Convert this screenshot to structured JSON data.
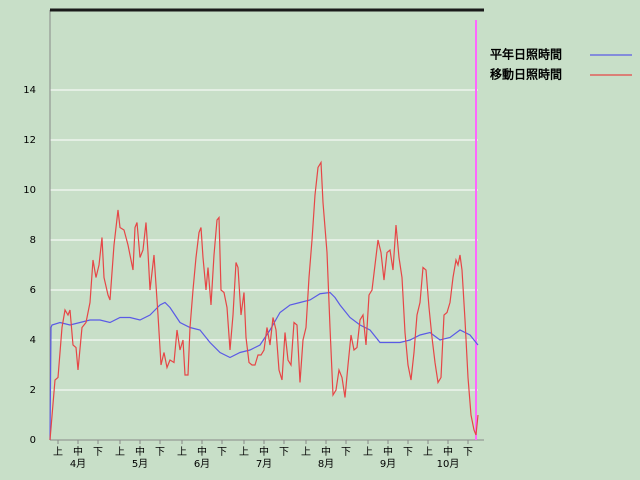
{
  "chart_data": {
    "type": "line",
    "legend": "top-right",
    "background": "#c8dfc8",
    "grid": true,
    "xlim": [
      0,
      214
    ],
    "ylim": [
      0,
      17.2
    ],
    "yticks": [
      0,
      2,
      4,
      6,
      8,
      10,
      12,
      14
    ],
    "xticks": [
      {
        "value": 4,
        "label": "上"
      },
      {
        "value": 14,
        "label": "中"
      },
      {
        "value": 24,
        "label": "下"
      },
      {
        "value": 35,
        "label": "上"
      },
      {
        "value": 45,
        "label": "中"
      },
      {
        "value": 55,
        "label": "下"
      },
      {
        "value": 66,
        "label": "上"
      },
      {
        "value": 76,
        "label": "中"
      },
      {
        "value": 86,
        "label": "下"
      },
      {
        "value": 97,
        "label": "上"
      },
      {
        "value": 107,
        "label": "中"
      },
      {
        "value": 117,
        "label": "下"
      },
      {
        "value": 128,
        "label": "上"
      },
      {
        "value": 138,
        "label": "中"
      },
      {
        "value": 148,
        "label": "下"
      },
      {
        "value": 159,
        "label": "上"
      },
      {
        "value": 169,
        "label": "中"
      },
      {
        "value": 179,
        "label": "下"
      },
      {
        "value": 189,
        "label": "上"
      },
      {
        "value": 199,
        "label": "中"
      },
      {
        "value": 209,
        "label": "下"
      }
    ],
    "month_labels": [
      {
        "value": 14,
        "label": "4月"
      },
      {
        "value": 45,
        "label": "5月"
      },
      {
        "value": 76,
        "label": "6月"
      },
      {
        "value": 107,
        "label": "7月"
      },
      {
        "value": 138,
        "label": "8月"
      },
      {
        "value": 169,
        "label": "9月"
      },
      {
        "value": 199,
        "label": "10月"
      }
    ],
    "series": [
      {
        "name": "平年日照時間",
        "color": "#5a5ae6",
        "x": [
          0,
          0.5,
          1,
          5,
          10,
          15,
          20,
          25,
          30,
          35,
          40,
          45,
          50,
          52.5,
          55,
          57.5,
          60,
          62.5,
          65,
          70,
          75,
          80,
          85,
          90,
          95,
          100,
          105,
          110,
          115,
          120,
          125,
          130,
          135,
          140,
          142.5,
          145,
          150,
          155,
          160,
          165,
          170,
          175,
          180,
          185,
          190,
          195,
          200,
          205,
          210,
          214
        ],
        "values": [
          0,
          4.5,
          4.6,
          4.7,
          4.6,
          4.7,
          4.8,
          4.8,
          4.7,
          4.9,
          4.9,
          4.8,
          5.0,
          5.2,
          5.4,
          5.5,
          5.3,
          5.0,
          4.7,
          4.5,
          4.4,
          3.9,
          3.5,
          3.3,
          3.5,
          3.6,
          3.8,
          4.4,
          5.1,
          5.4,
          5.5,
          5.6,
          5.85,
          5.9,
          5.7,
          5.4,
          4.9,
          4.6,
          4.4,
          3.9,
          3.9,
          3.9,
          4.0,
          4.2,
          4.3,
          4.0,
          4.1,
          4.4,
          4.2,
          3.8
        ]
      },
      {
        "name": "移動日照時間",
        "color": "#e64646",
        "x": [
          0,
          2.5,
          4,
          6,
          7.5,
          9,
          10,
          11.5,
          13,
          14,
          16,
          18,
          20,
          21.5,
          23,
          24.5,
          26,
          27,
          29,
          30,
          32,
          34,
          35,
          37,
          39,
          40.5,
          41.5,
          42.5,
          43.5,
          45,
          46.5,
          48,
          49,
          50,
          52,
          54,
          55.5,
          57,
          58.5,
          60,
          62,
          63.5,
          65,
          66.5,
          67.5,
          69,
          70,
          71.5,
          73,
          74.5,
          75.5,
          76.5,
          78,
          79,
          80.5,
          82,
          83.5,
          84.5,
          85.5,
          87,
          88.5,
          90,
          91.5,
          93,
          94,
          95.5,
          97,
          98,
          99.5,
          101,
          102.5,
          104,
          105.5,
          107,
          108.5,
          110,
          111.5,
          113,
          114.5,
          116,
          117.5,
          119,
          120.5,
          122,
          123.5,
          125,
          126.5,
          128,
          129.5,
          131,
          132.5,
          134,
          135.5,
          136.5,
          138.5,
          140,
          141.5,
          143,
          144.5,
          146,
          147.5,
          149,
          150.5,
          152,
          153.5,
          155,
          156.5,
          158,
          159.5,
          161,
          162.5,
          164,
          165.5,
          167,
          168.5,
          170,
          171.5,
          173,
          174.5,
          176,
          177.5,
          179,
          180.5,
          182,
          183.5,
          185,
          186.5,
          188,
          189.5,
          191,
          192.5,
          194,
          195.5,
          197,
          198.5,
          200,
          201.5,
          203,
          204,
          205,
          206,
          207.5,
          209,
          210.5,
          212,
          213,
          214
        ],
        "values": [
          0,
          2.4,
          2.5,
          4.5,
          5.2,
          5.0,
          5.2,
          3.8,
          3.7,
          2.8,
          4.5,
          4.7,
          5.5,
          7.2,
          6.5,
          7.0,
          8.1,
          6.5,
          5.8,
          5.6,
          7.8,
          9.2,
          8.5,
          8.4,
          7.8,
          7.2,
          6.8,
          8.5,
          8.7,
          7.3,
          7.6,
          8.7,
          7.5,
          6.0,
          7.4,
          5.0,
          3.0,
          3.5,
          2.9,
          3.2,
          3.1,
          4.4,
          3.6,
          4.0,
          2.6,
          2.6,
          4.5,
          6.0,
          7.3,
          8.3,
          8.5,
          7.3,
          6.0,
          6.9,
          5.4,
          7.4,
          8.8,
          8.9,
          6.0,
          5.9,
          5.3,
          3.6,
          5.0,
          7.1,
          6.9,
          5.0,
          5.9,
          4.1,
          3.1,
          3.0,
          3.0,
          3.4,
          3.4,
          3.6,
          4.5,
          3.8,
          4.9,
          4.4,
          2.8,
          2.4,
          4.3,
          3.2,
          3.0,
          4.7,
          4.6,
          2.3,
          4.0,
          4.5,
          6.5,
          8.0,
          9.8,
          10.9,
          11.1,
          9.5,
          7.5,
          4.5,
          1.8,
          2.0,
          2.8,
          2.5,
          1.7,
          3.0,
          4.2,
          3.6,
          3.7,
          4.8,
          5.0,
          3.8,
          5.8,
          6.0,
          7.0,
          8.0,
          7.5,
          6.4,
          7.5,
          7.6,
          6.8,
          8.6,
          7.3,
          6.5,
          4.3,
          3.0,
          2.4,
          3.5,
          5.0,
          5.5,
          6.9,
          6.8,
          5.3,
          4.1,
          3.1,
          2.3,
          2.5,
          5.0,
          5.1,
          5.5,
          6.5,
          7.2,
          7.0,
          7.4,
          6.8,
          4.8,
          2.5,
          1.0,
          0.4,
          0.2,
          1.0
        ]
      }
    ]
  }
}
